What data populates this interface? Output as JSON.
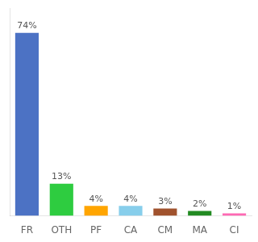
{
  "chart_data": {
    "type": "bar",
    "categories": [
      "FR",
      "OTH",
      "PF",
      "CA",
      "CM",
      "MA",
      "CI"
    ],
    "values": [
      74,
      13,
      4,
      4,
      3,
      2,
      1
    ],
    "value_labels": [
      "74%",
      "13%",
      "4%",
      "4%",
      "3%",
      "2%",
      "1%"
    ],
    "data_labels": true,
    "colors": [
      "#4C72C4",
      "#2ECC40",
      "#FFA500",
      "#87CEEB",
      "#A0522D",
      "#228B22",
      "#FF69B4"
    ],
    "ylim": [
      0,
      84
    ],
    "grid": false,
    "tick_labels": "x"
  }
}
